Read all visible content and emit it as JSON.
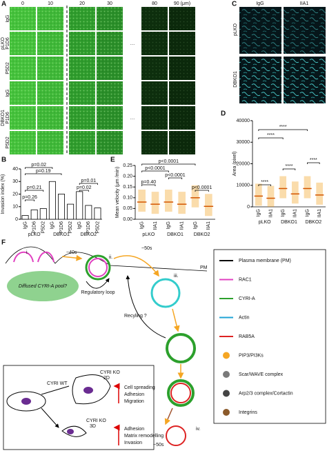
{
  "panel_a": {
    "label": "A",
    "columns": [
      "0",
      "10",
      "20",
      "30",
      "80",
      "90 (μm)"
    ],
    "ellipsis": "…",
    "groups": [
      {
        "name": "pLKO",
        "rows": [
          "IgG",
          "P1D6",
          "P5D2"
        ]
      },
      {
        "name": "DBKO1",
        "rows": [
          "IgG",
          "P1D6",
          "P5D2"
        ]
      }
    ]
  },
  "panel_c": {
    "label": "C",
    "columns": [
      "IgG",
      "IIA1"
    ],
    "rows": [
      "pLKO",
      "DBKO1"
    ]
  },
  "charts": [
    {
      "type": "bar",
      "label": "B",
      "ylabel": "Invasion index (%)",
      "ylim": [
        0,
        40
      ],
      "yticks": [
        0,
        10,
        20,
        30,
        40
      ],
      "categories": [
        "IgG",
        "P1D6",
        "P5D2",
        "IgG",
        "P1D6",
        "P5D2",
        "IgG",
        "P1D6",
        "P5D2"
      ],
      "groups": [
        "pLKO",
        "DBKO1",
        "DBKO2"
      ],
      "values": [
        3,
        7.5,
        8.5,
        30,
        20,
        12,
        22,
        11,
        9
      ],
      "color": "#ffffff",
      "annotations": [
        "p=0.26",
        "p=0.21",
        "p=0.19",
        "p=0.02",
        "p=0.02",
        "p=0.01"
      ]
    },
    {
      "type": "mean",
      "label": "E",
      "ylabel": "Mean velocity (μm /min)",
      "ylim": [
        0,
        0.25
      ],
      "yticks": [
        {
          "value": 0,
          "label": "0.00"
        },
        {
          "value": 0.05,
          "label": "0.05"
        },
        {
          "value": 0.1,
          "label": "0.10"
        },
        {
          "value": 0.15,
          "label": "0.15"
        },
        {
          "value": 0.2,
          "label": "0.20"
        },
        {
          "value": 0.25,
          "label": "0.25"
        }
      ],
      "categories": [
        "IgG",
        "IIA1",
        "IgG",
        "IIA1",
        "IgG",
        "IIA1"
      ],
      "groups": [
        "pLKO",
        "DBKO1",
        "DBKO2"
      ],
      "values": [
        0.08,
        0.07,
        0.08,
        0.07,
        0.1,
        0.06
      ],
      "color": "#f39c12",
      "annotations": [
        "p<0.0001",
        "p<0.0001",
        "p=0.40",
        "p<0.0001",
        "p<0.0001"
      ]
    },
    {
      "type": "mean",
      "label": "D",
      "ylabel": "Area (pixel)",
      "ylim": [
        0,
        40000
      ],
      "yticks": [
        0,
        10000,
        20000,
        30000,
        40000
      ],
      "categories": [
        "IgG",
        "IIA1",
        "IgG",
        "IIA1",
        "IgG",
        "IIA1"
      ],
      "groups": [
        "pLKO",
        "DBKO1",
        "DBKO2"
      ],
      "values": [
        5000,
        4000,
        8500,
        6000,
        8500,
        5500
      ],
      "color": "#f39c12",
      "annotations": [
        "****",
        "****",
        "****",
        "****",
        "****"
      ]
    }
  ],
  "panel_f": {
    "label": "F",
    "steps": [
      "i.",
      "ii.",
      "iii.",
      "iv."
    ],
    "times": [
      "~40s",
      "~50s",
      "~50s"
    ],
    "pm": "PM",
    "pool": "Diffused CYRI-A pool?",
    "loop": "Regulatory loop",
    "recycling": "Recyling ?",
    "legend": [
      "Plasma membrane (PM)",
      "RAC1",
      "CYRI-A",
      "Actin",
      "RAB5A",
      "PIP3/PI3Ks",
      "Scar/WAVE complex",
      "Arp2/3 complex/Cortactin",
      "Integrins"
    ],
    "inset": {
      "wt": "CYRI WT",
      "ko": "CYRI KO",
      "d2": "2D",
      "d3": "3D",
      "effects_2d": [
        "Cell spreading",
        "Adhesion",
        "Migration"
      ],
      "effects_3d": [
        "Adhesion",
        "Matrix remodelling",
        "Invasion"
      ]
    }
  }
}
